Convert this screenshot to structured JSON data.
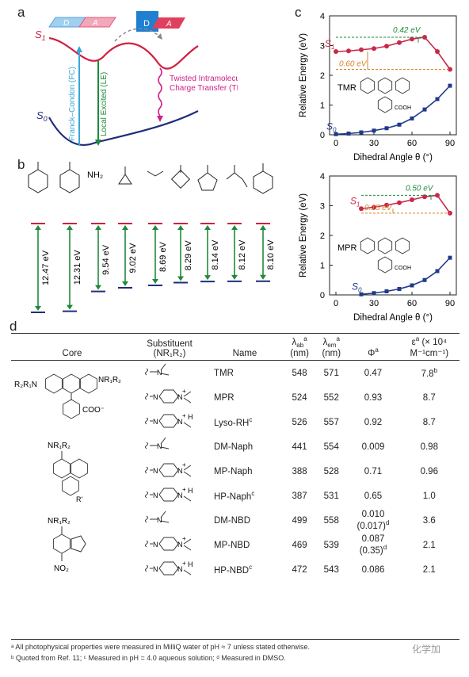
{
  "panels": {
    "a": {
      "letter": "a",
      "s1_label": "S",
      "s1_sub": "1",
      "s0_label": "S",
      "s0_sub": "0",
      "donor_label": "D",
      "acceptor_label": "A",
      "fc_label": "Franck–Condon (FC)",
      "le_label": "Local Excited (LE)",
      "tict_label_line1": "Twisted Intramolecular",
      "tict_label_line2": "Charge Transfer (TICT)",
      "colors": {
        "s1": "#d02040",
        "s0": "#1f2d7a",
        "fc": "#39a7d8",
        "le": "#1f8a3a",
        "tict": "#d0208a",
        "donor": "#5aa0e0",
        "acceptor": "#e05a7a"
      }
    },
    "b": {
      "letter": "b",
      "energies": [
        "12.47 eV",
        "12.31 eV",
        "9.54 eV",
        "9.02 eV",
        "8.69 eV",
        "8.29 eV",
        "8.14 eV",
        "8.12 eV",
        "8.10 eV"
      ],
      "energy_values": [
        12.47,
        12.31,
        9.54,
        9.02,
        8.69,
        8.29,
        8.14,
        8.12,
        8.1
      ],
      "amine_text": [
        "",
        "",
        "NH₂",
        "",
        "",
        "",
        "",
        "",
        ""
      ],
      "colors": {
        "top": "#d02040",
        "bottom": "#1f2d7a",
        "arrow": "#1f8a3a"
      }
    },
    "c": {
      "letter": "c",
      "charts": [
        {
          "type": "line",
          "xlabel": "Dihedral Angle θ (°)",
          "ylabel": "Relative Energy (eV)",
          "xlim": [
            -5,
            95
          ],
          "ylim": [
            0,
            4
          ],
          "xticks": [
            0,
            30,
            60,
            90
          ],
          "yticks": [
            0,
            1,
            2,
            3,
            4
          ],
          "compound": "TMR",
          "s1_label": "S",
          "s1_sub": "1",
          "s0_label": "S",
          "s0_sub": "0",
          "annot_green": "0.42 eV",
          "annot_orange": "0.60 eV",
          "cooh": "COOH",
          "series": [
            {
              "name": "S1",
              "x": [
                0,
                10,
                20,
                30,
                40,
                50,
                60,
                70,
                80,
                90
              ],
              "y": [
                2.8,
                2.82,
                2.86,
                2.9,
                2.98,
                3.1,
                3.22,
                3.28,
                2.8,
                2.2
              ]
            },
            {
              "name": "S0",
              "x": [
                0,
                10,
                20,
                30,
                40,
                50,
                60,
                70,
                80,
                90
              ],
              "y": [
                0.02,
                0.04,
                0.08,
                0.14,
                0.22,
                0.34,
                0.55,
                0.85,
                1.2,
                1.65
              ]
            }
          ]
        },
        {
          "type": "line",
          "xlabel": "Dihedral Angle θ (°)",
          "ylabel": "Relative Energy (eV)",
          "xlim": [
            -5,
            95
          ],
          "ylim": [
            0,
            4
          ],
          "xticks": [
            0,
            30,
            60,
            90
          ],
          "yticks": [
            0,
            1,
            2,
            3,
            4
          ],
          "compound": "MPR",
          "s1_label": "S",
          "s1_sub": "1",
          "s0_label": "S",
          "s0_sub": "0",
          "annot_green": "0.50 eV",
          "annot_orange": "0.15 eV",
          "cooh": "COOH",
          "series": [
            {
              "name": "S1",
              "x": [
                20,
                30,
                40,
                50,
                60,
                70,
                80,
                90
              ],
              "y": [
                2.9,
                2.95,
                3.02,
                3.1,
                3.2,
                3.3,
                3.35,
                2.75
              ]
            },
            {
              "name": "S0",
              "x": [
                20,
                30,
                40,
                50,
                60,
                70,
                80,
                90
              ],
              "y": [
                0.02,
                0.06,
                0.12,
                0.2,
                0.32,
                0.5,
                0.8,
                1.25
              ]
            }
          ]
        }
      ]
    },
    "d": {
      "letter": "d",
      "headers": {
        "core": "Core",
        "substituent_line1": "Substituent",
        "substituent_line2": "(NR₁R₂)",
        "name": "Name",
        "lab": "λ",
        "lab_sub": "ab",
        "lab_sup": "a",
        "lab_unit": "(nm)",
        "lem": "λ",
        "lem_sub": "em",
        "lem_sup": "a",
        "lem_unit": "(nm)",
        "phi": "Φ",
        "phi_sup": "a",
        "eps": "ε",
        "eps_sup": "a",
        "eps_unit1": " (× 10⁴",
        "eps_unit2": "M⁻¹cm⁻¹)"
      },
      "groups": [
        {
          "core_labels": {
            "left": "R₂R₁N",
            "right": "NR₁R₂",
            "acid": "COO⁻"
          },
          "rows": [
            {
              "sub": "dimethyl",
              "name": "TMR",
              "name_sup": "",
              "lab": "548",
              "lem": "571",
              "phi": "0.47",
              "phi2": "",
              "eps": "7.8",
              "eps_sup": "b"
            },
            {
              "sub": "piperazinium",
              "name": "MPR",
              "name_sup": "",
              "lab": "524",
              "lem": "552",
              "phi": "0.93",
              "phi2": "",
              "eps": "8.7",
              "eps_sup": ""
            },
            {
              "sub": "piperazine-H",
              "name": "Lyso-RH",
              "name_sup": "c",
              "lab": "526",
              "lem": "557",
              "phi": "0.92",
              "phi2": "",
              "eps": "8.7",
              "eps_sup": ""
            }
          ]
        },
        {
          "core_labels": {
            "top": "NR₁R₂",
            "bottom": "R'"
          },
          "rows": [
            {
              "sub": "dimethyl",
              "name": "DM-Naph",
              "name_sup": "",
              "lab": "441",
              "lem": "554",
              "phi": "0.009",
              "phi2": "",
              "eps": "0.98",
              "eps_sup": ""
            },
            {
              "sub": "piperazinium",
              "name": "MP-Naph",
              "name_sup": "",
              "lab": "388",
              "lem": "528",
              "phi": "0.71",
              "phi2": "",
              "eps": "0.96",
              "eps_sup": ""
            },
            {
              "sub": "piperazine-H",
              "name": "HP-Naph",
              "name_sup": "c",
              "lab": "387",
              "lem": "531",
              "phi": "0.65",
              "phi2": "",
              "eps": "1.0",
              "eps_sup": ""
            }
          ]
        },
        {
          "core_labels": {
            "top": "NR₁R₂",
            "bottom": "NO₂"
          },
          "rows": [
            {
              "sub": "dimethyl",
              "name": "DM-NBD",
              "name_sup": "",
              "lab": "499",
              "lem": "558",
              "phi": "0.010",
              "phi2": "(0.017)",
              "phi2_sup": "d",
              "eps": "3.6",
              "eps_sup": ""
            },
            {
              "sub": "piperazinium",
              "name": "MP-NBD",
              "name_sup": "",
              "lab": "469",
              "lem": "539",
              "phi": "0.087",
              "phi2": "(0.35)",
              "phi2_sup": "d",
              "eps": "2.1",
              "eps_sup": ""
            },
            {
              "sub": "piperazine-H",
              "name": "HP-NBD",
              "name_sup": "c",
              "lab": "472",
              "lem": "543",
              "phi": "0.086",
              "phi2": "",
              "eps": "2.1",
              "eps_sup": ""
            }
          ]
        }
      ],
      "footnotes": [
        "ᵃ All photophysical properties were measured in MilliQ water of pH ≈ 7 unless stated otherwise.",
        "ᵇ Quoted from Ref. 11; ᶜ Measured in pH = 4.0 aqueous solution; ᵈ Measured in DMSO."
      ],
      "watermark": "化学加"
    }
  }
}
